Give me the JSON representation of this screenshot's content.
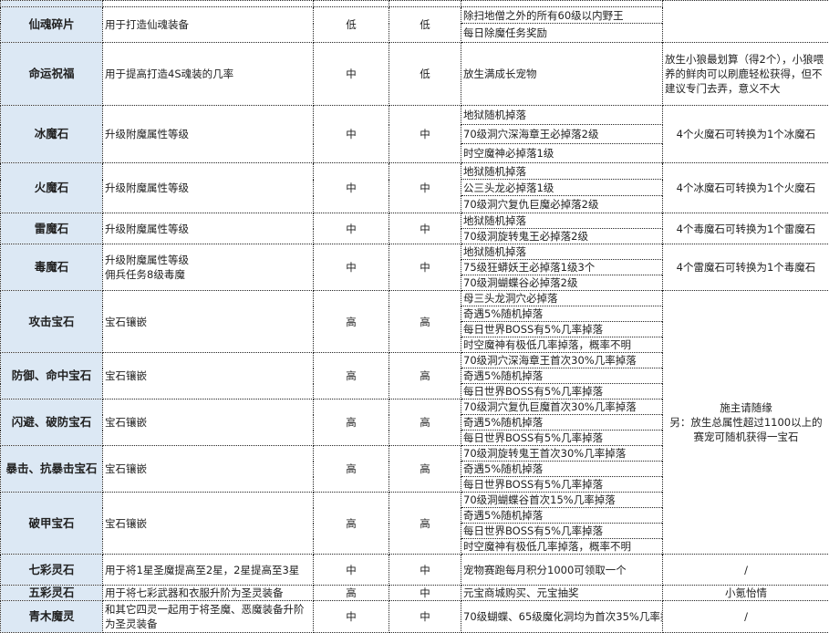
{
  "items": [
    {
      "name": "",
      "use": "",
      "c1": "",
      "c2": "",
      "sources": [
        ""
      ],
      "note": "",
      "note_span": 2
    },
    {
      "name": "仙魂碎片",
      "use": "用于打造仙魂装备",
      "c1": "低",
      "c2": "低",
      "sources": [
        "除扫地僧之外的所有60级以内野王",
        "每日除魔任务奖励"
      ]
    },
    {
      "name": "命运祝福",
      "use": "用于提高打造4S魂装的几率",
      "c1": "中",
      "c2": "低",
      "sources": [
        "放生满成长宠物"
      ],
      "note": "放生小狼最划算（得2个），小狼喂养的鲜肉可以刷鹿轻松获得，但不建议专门去弄，意义不大",
      "note_span": 1,
      "note_align": "left"
    },
    {
      "name": "冰魔石",
      "use": "升级附魔属性等级",
      "c1": "中",
      "c2": "中",
      "sources": [
        "地狱随机掉落",
        "70级洞穴深海章王必掉落2级",
        "时空魔神必掉落1级"
      ],
      "note": "4个火魔石可转换为1个冰魔石",
      "note_span": 1
    },
    {
      "name": "火魔石",
      "use": "升级附魔属性等级",
      "c1": "中",
      "c2": "中",
      "sources": [
        "地狱随机掉落",
        "公三头龙必掉落1级",
        "70级洞穴复仇巨魔必掉落2级"
      ],
      "note": "4个冰魔石可转换为1个火魔石",
      "note_span": 1
    },
    {
      "name": "雷魔石",
      "use": "升级附魔属性等级",
      "c1": "中",
      "c2": "中",
      "sources": [
        "地狱随机掉落",
        "70级洞旋转鬼王必掉落2级"
      ],
      "note": "4个毒魔石可转换为1个雷魔石",
      "note_span": 1
    },
    {
      "name": "毒魔石",
      "use": "升级附魔属性等级\n佣兵任务8级毒魔",
      "c1": "中",
      "c2": "中",
      "sources": [
        "地狱随机掉落",
        "75级狂蟒妖王必掉落1级3个",
        "70级洞蝴蝶谷必掉落2级"
      ],
      "note": "4个雷魔石可转换为1个毒魔石",
      "note_span": 1
    },
    {
      "name": "攻击宝石",
      "use": "宝石镶嵌",
      "c1": "高",
      "c2": "高",
      "sources": [
        "母三头龙洞穴必掉落",
        "奇遇5%随机掉落",
        "每日世界BOSS有5%几率掉落",
        "时空魔神有极低几率掉落，概率不明"
      ],
      "note": "施主请随缘\n另：放生总属性超过1100以上的赛宠可随机获得一宝石",
      "note_span": 5
    },
    {
      "name": "防御、命中宝石",
      "use": "宝石镶嵌",
      "c1": "高",
      "c2": "高",
      "sources": [
        "70级洞穴深海章王首次30%几率掉落",
        "奇遇5%随机掉落",
        "每日世界BOSS有5%几率掉落"
      ]
    },
    {
      "name": "闪避、破防宝石",
      "use": "宝石镶嵌",
      "c1": "高",
      "c2": "高",
      "sources": [
        "70级洞穴复仇巨魔首次30%几率掉落",
        "奇遇5%随机掉落",
        "每日世界BOSS有5%几率掉落"
      ]
    },
    {
      "name": "暴击、抗暴击宝石",
      "use": "宝石镶嵌",
      "c1": "高",
      "c2": "高",
      "sources": [
        "70级洞旋转鬼王首次30%几率掉落",
        "奇遇5%随机掉落",
        "每日世界BOSS有5%几率掉落"
      ]
    },
    {
      "name": "破甲宝石",
      "use": "宝石镶嵌",
      "c1": "高",
      "c2": "高",
      "sources": [
        "70级洞蝴蝶谷首次15%几率掉落",
        "奇遇5%随机掉落",
        "每日世界BOSS有5%几率掉落",
        "时空魔神有极低几率掉落，概率不明"
      ]
    },
    {
      "name": "七彩灵石",
      "use": "用于将1星圣魔提高至2星，2星提高至3星",
      "c1": "中",
      "c2": "中",
      "sources": [
        "宠物赛跑每月积分1000可领取一个"
      ],
      "note": "/",
      "note_span": 1
    },
    {
      "name": "五彩灵石",
      "use": "用于将七彩武器和衣服升阶为圣灵装备",
      "c1": "高",
      "c2": "中",
      "sources": [
        "元宝商城购买、元宝抽奖"
      ],
      "note": "小氪怡情",
      "note_span": 1
    },
    {
      "name": "青木魔灵",
      "use": "和其它四灵一起用于将圣魔、恶魔装备升阶为圣灵装备",
      "c1": "中",
      "c2": "中",
      "sources": [
        "70级蝴蝶、65级魔化洞均为首次35%几率掉落"
      ],
      "note": "/",
      "note_span": 1
    }
  ]
}
